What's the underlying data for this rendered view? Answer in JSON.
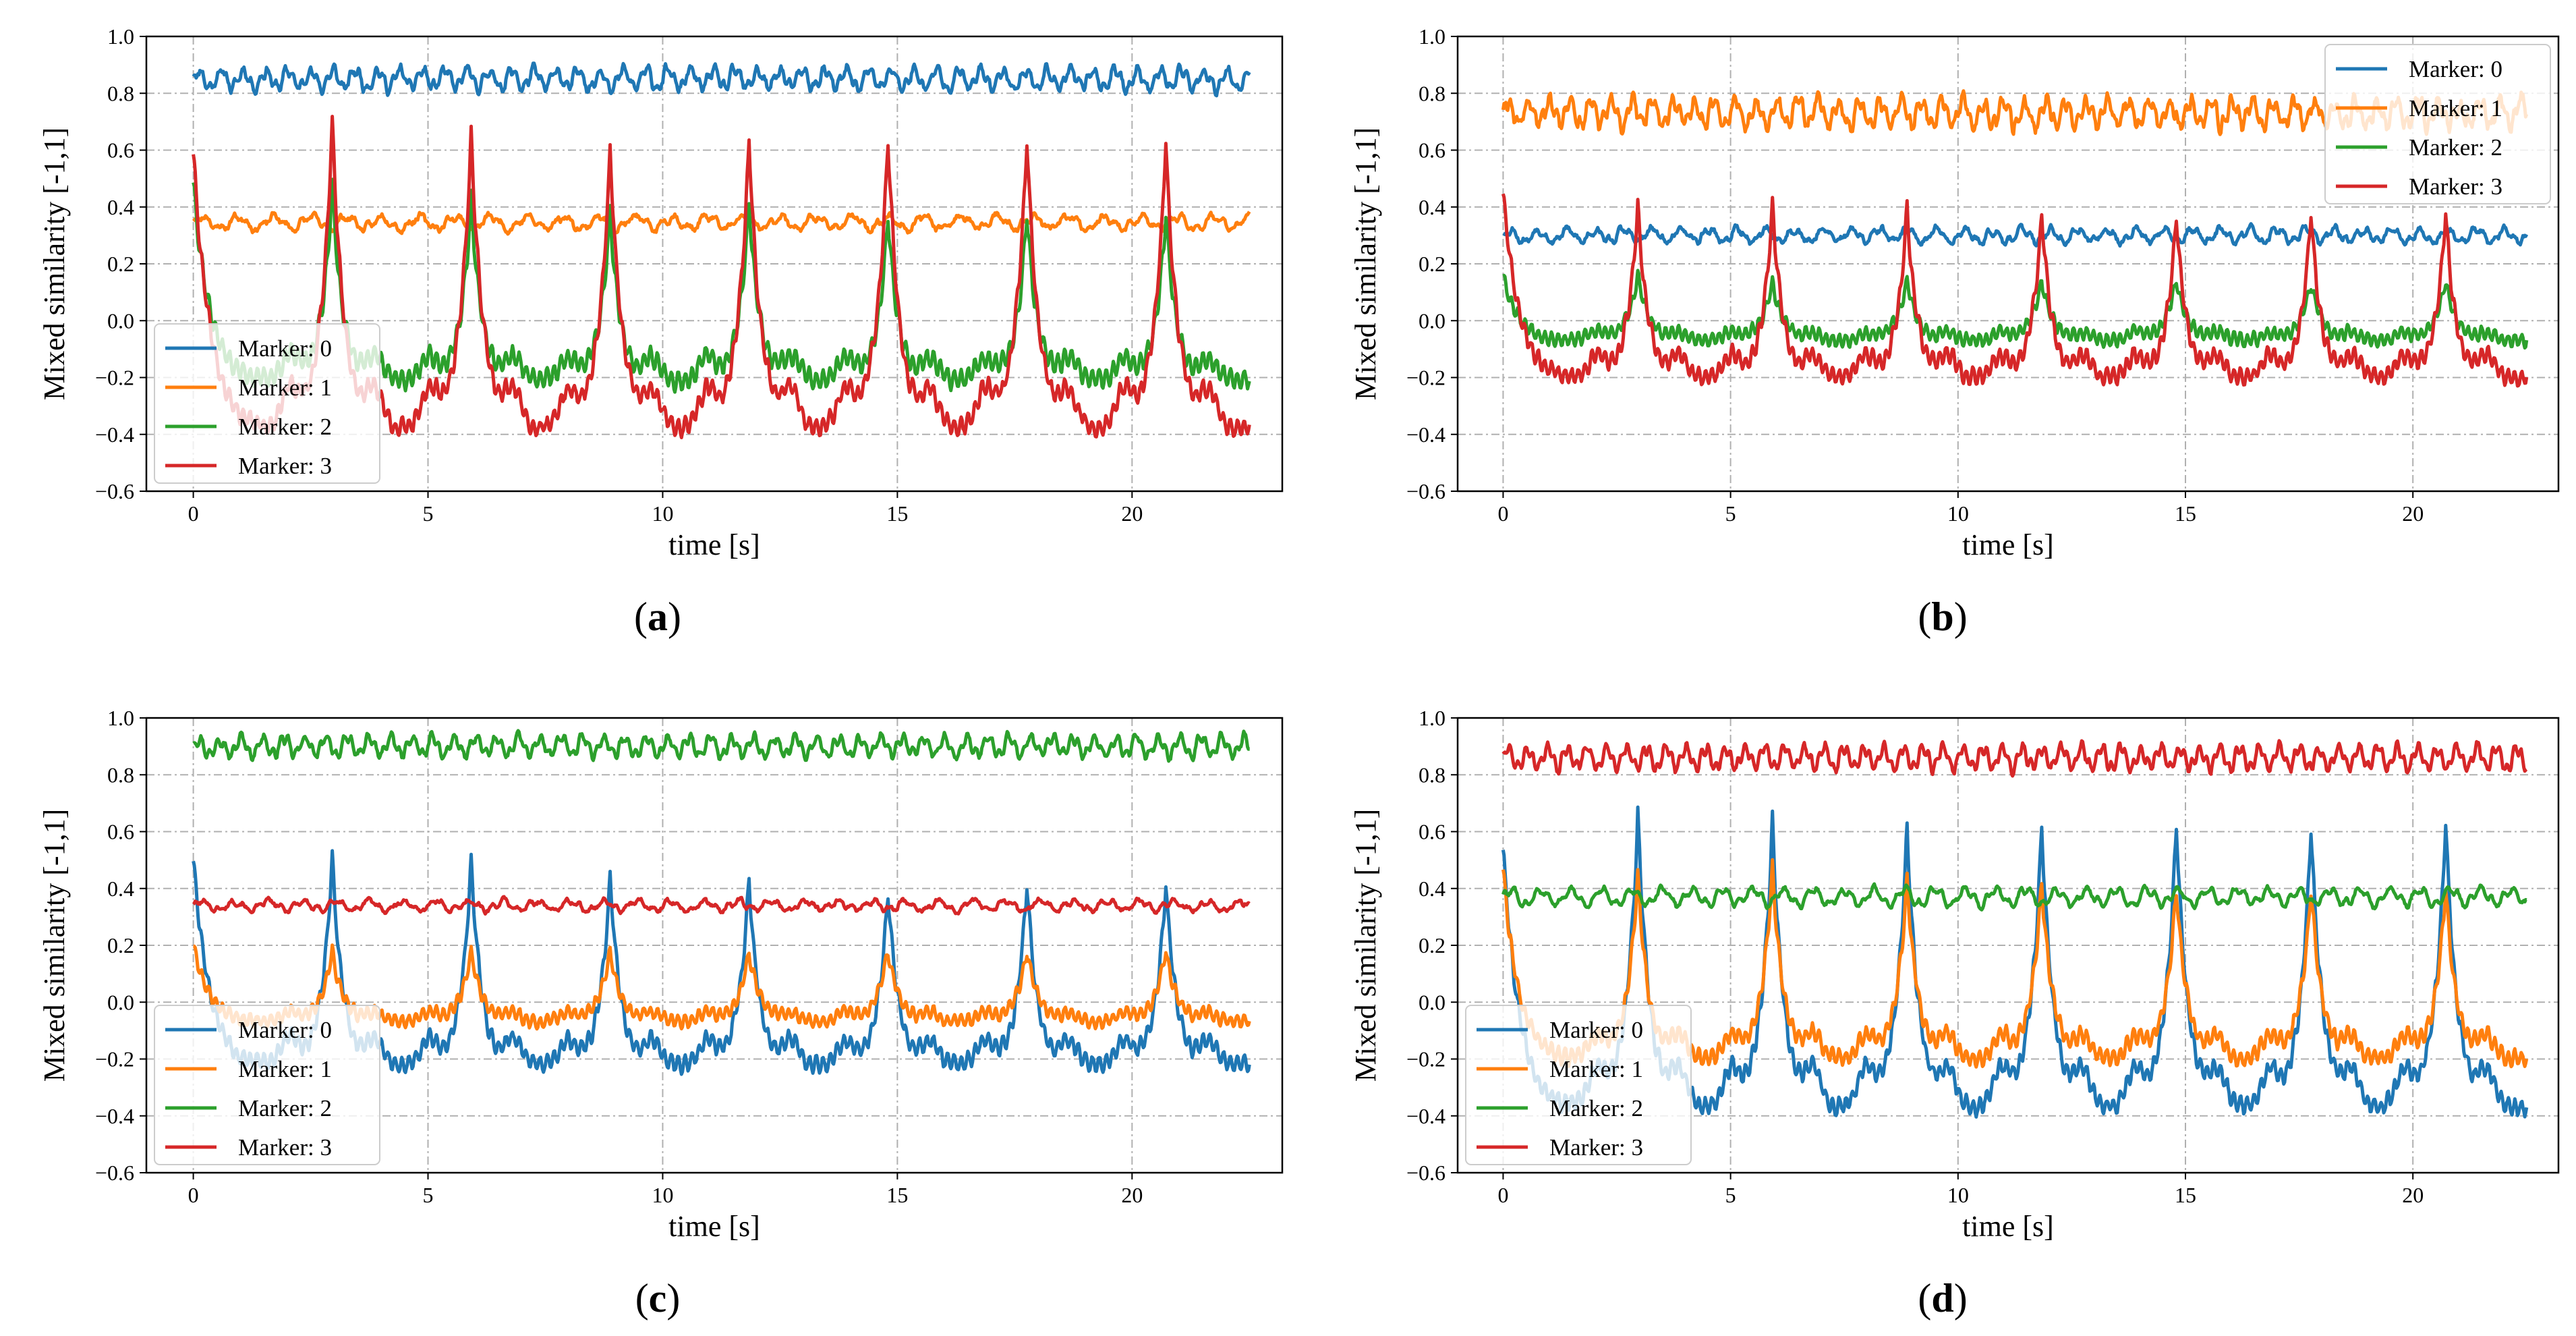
{
  "colors": {
    "marker_0": "#1f77b4",
    "marker_1": "#ff7f0e",
    "marker_2": "#2ca02c",
    "marker_3": "#d62728",
    "grid": "#b0b0b0"
  },
  "chart_data": [
    {
      "type": "line",
      "caption": "a",
      "xlabel": "time [s]",
      "ylabel": "Mixed similarity [-1,1]",
      "xlim": [
        -1,
        23.2
      ],
      "ylim": [
        -0.6,
        1.0
      ],
      "xticks": [
        0,
        5,
        10,
        15,
        20
      ],
      "yticks": [
        -0.6,
        -0.4,
        -0.2,
        0.0,
        0.2,
        0.4,
        0.6,
        0.8,
        1.0
      ],
      "ytick_labels": [
        "−0.6",
        "−0.4",
        "−0.2",
        "0.0",
        "0.2",
        "0.4",
        "0.6",
        "0.8",
        "1.0"
      ],
      "grid": true,
      "legend": "lower-left",
      "series": [
        {
          "name": "Marker: 0",
          "color": "#1f77b4",
          "kind": "flat",
          "base": 0.85,
          "ripple": 0.03,
          "rippleFreq": 2.1,
          "noise": 0.01,
          "seed": 11,
          "tEnd": 22.5
        },
        {
          "name": "Marker: 1",
          "color": "#ff7f0e",
          "kind": "flat",
          "base": 0.345,
          "ripple": 0.02,
          "rippleFreq": 1.3,
          "noise": 0.008,
          "seed": 23,
          "tEnd": 22.5
        },
        {
          "name": "Marker: 2",
          "color": "#2ca02c",
          "kind": "peak",
          "base": -0.21,
          "peaks": [
            0.47,
            0.48,
            0.43,
            0.38,
            0.42,
            0.37,
            0.38,
            0.38
          ],
          "startVal": 0.49,
          "dipDepth": 0.0,
          "width": 0.5,
          "ripple": 0.03,
          "noise": 0.008,
          "seed": 37,
          "tEnd": 22.5
        },
        {
          "name": "Marker: 3",
          "color": "#d62728",
          "kind": "peak",
          "base": -0.34,
          "peaks": [
            0.6,
            0.7,
            0.66,
            0.6,
            0.63,
            0.64,
            0.64,
            0.63
          ],
          "startVal": 0.59,
          "dipDepth": 0.04,
          "width": 0.55,
          "ripple": 0.025,
          "noise": 0.01,
          "seed": 41,
          "tEnd": 22.5
        }
      ]
    },
    {
      "type": "line",
      "caption": "b",
      "xlabel": "time [s]",
      "ylabel": "Mixed similarity [-1,1]",
      "xlim": [
        -1,
        23.2
      ],
      "ylim": [
        -0.6,
        1.0
      ],
      "xticks": [
        0,
        5,
        10,
        15,
        20
      ],
      "yticks": [
        -0.6,
        -0.4,
        -0.2,
        0.0,
        0.2,
        0.4,
        0.6,
        0.8,
        1.0
      ],
      "ytick_labels": [
        "−0.6",
        "−0.4",
        "−0.2",
        "0.0",
        "0.2",
        "0.4",
        "0.6",
        "0.8",
        "1.0"
      ],
      "grid": true,
      "legend": "upper-right",
      "series": [
        {
          "name": "Marker: 0",
          "color": "#1f77b4",
          "kind": "flat",
          "base": 0.3,
          "ripple": 0.02,
          "rippleFreq": 1.6,
          "noise": 0.008,
          "seed": 53,
          "tEnd": 22.5
        },
        {
          "name": "Marker: 1",
          "color": "#ff7f0e",
          "kind": "flat",
          "base": 0.73,
          "ripple": 0.04,
          "rippleFreq": 2.2,
          "noise": 0.015,
          "seed": 61,
          "tEnd": 22.5
        },
        {
          "name": "Marker: 2",
          "color": "#2ca02c",
          "kind": "peak",
          "base": -0.07,
          "peaks": [
            0.16,
            0.16,
            0.14,
            0.14,
            0.14,
            0.14,
            0.14,
            0.14
          ],
          "startVal": 0.16,
          "dipDepth": 0.0,
          "width": 0.55,
          "ripple": 0.02,
          "noise": 0.006,
          "seed": 67,
          "tEnd": 22.5
        },
        {
          "name": "Marker: 3",
          "color": "#d62728",
          "kind": "peak",
          "base": -0.2,
          "peaks": [
            0.45,
            0.41,
            0.41,
            0.4,
            0.38,
            0.38,
            0.38,
            0.38
          ],
          "startVal": 0.45,
          "dipDepth": 0.0,
          "width": 0.5,
          "ripple": 0.025,
          "noise": 0.008,
          "seed": 71,
          "tEnd": 22.5
        }
      ]
    },
    {
      "type": "line",
      "caption": "c",
      "xlabel": "time [s]",
      "ylabel": "Mixed similarity [-1,1]",
      "xlim": [
        -1,
        23.2
      ],
      "ylim": [
        -0.6,
        1.0
      ],
      "xticks": [
        0,
        5,
        10,
        15,
        20
      ],
      "yticks": [
        -0.6,
        -0.4,
        -0.2,
        0.0,
        0.2,
        0.4,
        0.6,
        0.8,
        1.0
      ],
      "ytick_labels": [
        "−0.6",
        "−0.4",
        "−0.2",
        "0.0",
        "0.2",
        "0.4",
        "0.6",
        "0.8",
        "1.0"
      ],
      "grid": true,
      "legend": "lower-left",
      "series": [
        {
          "name": "Marker: 0",
          "color": "#1f77b4",
          "kind": "peak",
          "base": -0.22,
          "peaks": [
            0.5,
            0.52,
            0.5,
            0.44,
            0.43,
            0.39,
            0.42,
            0.42
          ],
          "startVal": 0.5,
          "dipDepth": 0.0,
          "width": 0.5,
          "ripple": 0.025,
          "noise": 0.008,
          "seed": 83,
          "tEnd": 22.5
        },
        {
          "name": "Marker: 1",
          "color": "#ff7f0e",
          "kind": "peak",
          "base": -0.07,
          "peaks": [
            0.2,
            0.18,
            0.18,
            0.18,
            0.18,
            0.18,
            0.18,
            0.18
          ],
          "startVal": 0.2,
          "dipDepth": 0.0,
          "width": 0.55,
          "ripple": 0.02,
          "noise": 0.006,
          "seed": 89,
          "tEnd": 22.5
        },
        {
          "name": "Marker: 2",
          "color": "#2ca02c",
          "kind": "flat",
          "base": 0.9,
          "ripple": 0.03,
          "rippleFreq": 2.2,
          "noise": 0.008,
          "seed": 97,
          "tEnd": 22.5
        },
        {
          "name": "Marker: 3",
          "color": "#d62728",
          "kind": "flat",
          "base": 0.34,
          "ripple": 0.015,
          "rippleFreq": 1.4,
          "noise": 0.006,
          "seed": 101,
          "tEnd": 22.5
        }
      ]
    },
    {
      "type": "line",
      "caption": "d",
      "xlabel": "time [s]",
      "ylabel": "Mixed similarity [-1,1]",
      "xlim": [
        -1,
        23.2
      ],
      "ylim": [
        -0.6,
        1.0
      ],
      "xticks": [
        0,
        5,
        10,
        15,
        20
      ],
      "yticks": [
        -0.6,
        -0.4,
        -0.2,
        0.0,
        0.2,
        0.4,
        0.6,
        0.8,
        1.0
      ],
      "ytick_labels": [
        "−0.6",
        "−0.4",
        "−0.2",
        "0.0",
        "0.2",
        "0.4",
        "0.6",
        "0.8",
        "1.0"
      ],
      "grid": true,
      "legend": "lower-left",
      "series": [
        {
          "name": "Marker: 0",
          "color": "#1f77b4",
          "kind": "peak",
          "base": -0.33,
          "peaks": [
            0.54,
            0.67,
            0.64,
            0.62,
            0.62,
            0.64,
            0.62,
            0.63
          ],
          "startVal": 0.54,
          "dipDepth": 0.04,
          "width": 0.55,
          "ripple": 0.025,
          "noise": 0.01,
          "seed": 107,
          "tEnd": 22.5
        },
        {
          "name": "Marker: 1",
          "color": "#ff7f0e",
          "kind": "peak",
          "base": -0.2,
          "peaks": [
            0.47,
            0.44,
            0.47,
            0.43,
            0.42,
            0.4,
            0.4,
            0.4
          ],
          "startVal": 0.47,
          "dipDepth": 0.0,
          "width": 0.55,
          "ripple": 0.025,
          "noise": 0.008,
          "seed": 113,
          "tEnd": 22.5
        },
        {
          "name": "Marker: 2",
          "color": "#2ca02c",
          "kind": "flat",
          "base": 0.37,
          "ripple": 0.025,
          "rippleFreq": 1.5,
          "noise": 0.006,
          "seed": 127,
          "tEnd": 22.5
        },
        {
          "name": "Marker: 3",
          "color": "#d62728",
          "kind": "flat",
          "base": 0.86,
          "ripple": 0.035,
          "rippleFreq": 2.3,
          "noise": 0.008,
          "seed": 131,
          "tEnd": 22.5
        }
      ]
    }
  ]
}
